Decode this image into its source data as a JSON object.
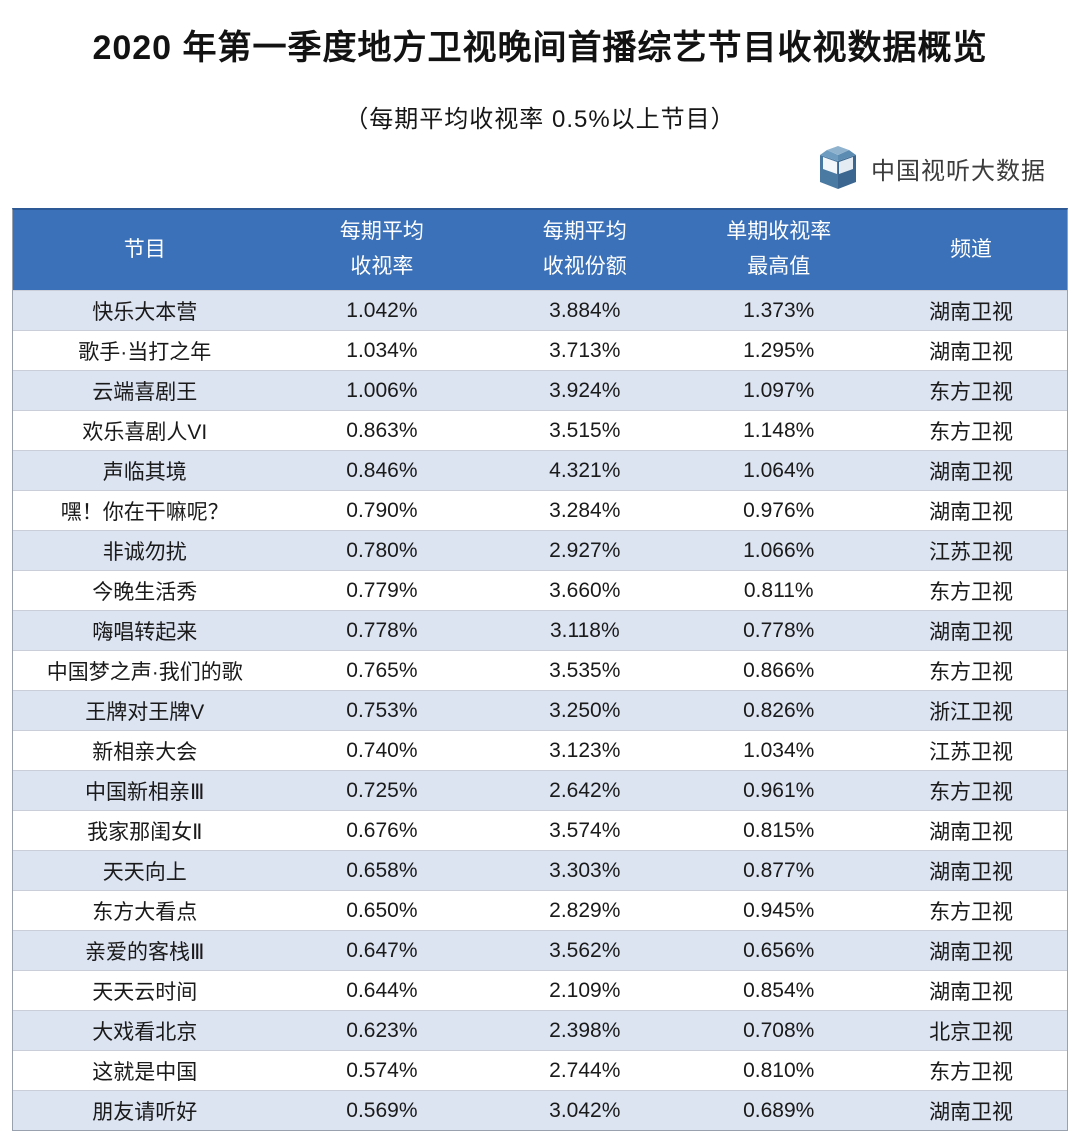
{
  "page": {
    "title": "2020 年第一季度地方卫视晚间首播综艺节目收视数据概览",
    "subtitle": "（每期平均收视率 0.5%以上节目）",
    "logo_text": "中国视听大数据"
  },
  "colors": {
    "header_bg": "#3b71b8",
    "header_top_border": "#2d5a96",
    "row_alt_bg": "#dce3f1",
    "row_bg": "#ffffff",
    "logo_blue_dark": "#3a668f",
    "logo_blue_light": "#6d9cc0",
    "text": "#1a1a1a"
  },
  "table": {
    "columns": [
      "节目",
      "每期平均\n收视率",
      "每期平均\n收视份额",
      "单期收视率\n最高值",
      "频道"
    ],
    "rows": [
      [
        "快乐大本营",
        "1.042%",
        "3.884%",
        "1.373%",
        "湖南卫视"
      ],
      [
        "歌手·当打之年",
        "1.034%",
        "3.713%",
        "1.295%",
        "湖南卫视"
      ],
      [
        "云端喜剧王",
        "1.006%",
        "3.924%",
        "1.097%",
        "东方卫视"
      ],
      [
        "欢乐喜剧人VI",
        "0.863%",
        "3.515%",
        "1.148%",
        "东方卫视"
      ],
      [
        "声临其境",
        "0.846%",
        "4.321%",
        "1.064%",
        "湖南卫视"
      ],
      [
        "嘿！你在干嘛呢？",
        "0.790%",
        "3.284%",
        "0.976%",
        "湖南卫视"
      ],
      [
        "非诚勿扰",
        "0.780%",
        "2.927%",
        "1.066%",
        "江苏卫视"
      ],
      [
        "今晚生活秀",
        "0.779%",
        "3.660%",
        "0.811%",
        "东方卫视"
      ],
      [
        "嗨唱转起来",
        "0.778%",
        "3.118%",
        "0.778%",
        "湖南卫视"
      ],
      [
        "中国梦之声·我们的歌",
        "0.765%",
        "3.535%",
        "0.866%",
        "东方卫视"
      ],
      [
        "王牌对王牌V",
        "0.753%",
        "3.250%",
        "0.826%",
        "浙江卫视"
      ],
      [
        "新相亲大会",
        "0.740%",
        "3.123%",
        "1.034%",
        "江苏卫视"
      ],
      [
        "中国新相亲Ⅲ",
        "0.725%",
        "2.642%",
        "0.961%",
        "东方卫视"
      ],
      [
        "我家那闺女Ⅱ",
        "0.676%",
        "3.574%",
        "0.815%",
        "湖南卫视"
      ],
      [
        "天天向上",
        "0.658%",
        "3.303%",
        "0.877%",
        "湖南卫视"
      ],
      [
        "东方大看点",
        "0.650%",
        "2.829%",
        "0.945%",
        "东方卫视"
      ],
      [
        "亲爱的客栈Ⅲ",
        "0.647%",
        "3.562%",
        "0.656%",
        "湖南卫视"
      ],
      [
        "天天云时间",
        "0.644%",
        "2.109%",
        "0.854%",
        "湖南卫视"
      ],
      [
        "大戏看北京",
        "0.623%",
        "2.398%",
        "0.708%",
        "北京卫视"
      ],
      [
        "这就是中国",
        "0.574%",
        "2.744%",
        "0.810%",
        "东方卫视"
      ],
      [
        "朋友请听好",
        "0.569%",
        "3.042%",
        "0.689%",
        "湖南卫视"
      ]
    ]
  },
  "chart_data": {
    "type": "table",
    "title": "2020 年第一季度地方卫视晚间首播综艺节目收视数据概览",
    "subtitle": "（每期平均收视率 0.5%以上节目）",
    "source": "中国视听大数据",
    "columns": [
      "节目",
      "每期平均收视率",
      "每期平均收视份额",
      "单期收视率最高值",
      "频道"
    ],
    "rows": [
      {
        "program": "快乐大本营",
        "avg_rating": 1.042,
        "avg_share": 3.884,
        "max_rating": 1.373,
        "channel": "湖南卫视"
      },
      {
        "program": "歌手·当打之年",
        "avg_rating": 1.034,
        "avg_share": 3.713,
        "max_rating": 1.295,
        "channel": "湖南卫视"
      },
      {
        "program": "云端喜剧王",
        "avg_rating": 1.006,
        "avg_share": 3.924,
        "max_rating": 1.097,
        "channel": "东方卫视"
      },
      {
        "program": "欢乐喜剧人VI",
        "avg_rating": 0.863,
        "avg_share": 3.515,
        "max_rating": 1.148,
        "channel": "东方卫视"
      },
      {
        "program": "声临其境",
        "avg_rating": 0.846,
        "avg_share": 4.321,
        "max_rating": 1.064,
        "channel": "湖南卫视"
      },
      {
        "program": "嘿！你在干嘛呢？",
        "avg_rating": 0.79,
        "avg_share": 3.284,
        "max_rating": 0.976,
        "channel": "湖南卫视"
      },
      {
        "program": "非诚勿扰",
        "avg_rating": 0.78,
        "avg_share": 2.927,
        "max_rating": 1.066,
        "channel": "江苏卫视"
      },
      {
        "program": "今晚生活秀",
        "avg_rating": 0.779,
        "avg_share": 3.66,
        "max_rating": 0.811,
        "channel": "东方卫视"
      },
      {
        "program": "嗨唱转起来",
        "avg_rating": 0.778,
        "avg_share": 3.118,
        "max_rating": 0.778,
        "channel": "湖南卫视"
      },
      {
        "program": "中国梦之声·我们的歌",
        "avg_rating": 0.765,
        "avg_share": 3.535,
        "max_rating": 0.866,
        "channel": "东方卫视"
      },
      {
        "program": "王牌对王牌V",
        "avg_rating": 0.753,
        "avg_share": 3.25,
        "max_rating": 0.826,
        "channel": "浙江卫视"
      },
      {
        "program": "新相亲大会",
        "avg_rating": 0.74,
        "avg_share": 3.123,
        "max_rating": 1.034,
        "channel": "江苏卫视"
      },
      {
        "program": "中国新相亲Ⅲ",
        "avg_rating": 0.725,
        "avg_share": 2.642,
        "max_rating": 0.961,
        "channel": "东方卫视"
      },
      {
        "program": "我家那闺女Ⅱ",
        "avg_rating": 0.676,
        "avg_share": 3.574,
        "max_rating": 0.815,
        "channel": "湖南卫视"
      },
      {
        "program": "天天向上",
        "avg_rating": 0.658,
        "avg_share": 3.303,
        "max_rating": 0.877,
        "channel": "湖南卫视"
      },
      {
        "program": "东方大看点",
        "avg_rating": 0.65,
        "avg_share": 2.829,
        "max_rating": 0.945,
        "channel": "东方卫视"
      },
      {
        "program": "亲爱的客栈Ⅲ",
        "avg_rating": 0.647,
        "avg_share": 3.562,
        "max_rating": 0.656,
        "channel": "湖南卫视"
      },
      {
        "program": "天天云时间",
        "avg_rating": 0.644,
        "avg_share": 2.109,
        "max_rating": 0.854,
        "channel": "湖南卫视"
      },
      {
        "program": "大戏看北京",
        "avg_rating": 0.623,
        "avg_share": 2.398,
        "max_rating": 0.708,
        "channel": "北京卫视"
      },
      {
        "program": "这就是中国",
        "avg_rating": 0.574,
        "avg_share": 2.744,
        "max_rating": 0.81,
        "channel": "东方卫视"
      },
      {
        "program": "朋友请听好",
        "avg_rating": 0.569,
        "avg_share": 3.042,
        "max_rating": 0.689,
        "channel": "湖南卫视"
      }
    ],
    "units": "%",
    "note": "rows sorted descending by 每期平均收视率"
  }
}
